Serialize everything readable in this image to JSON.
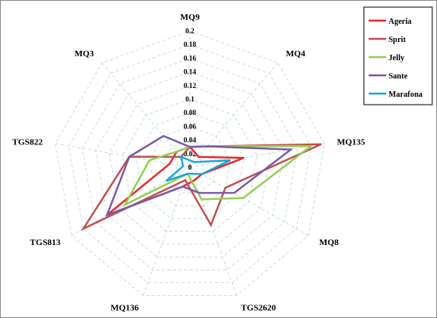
{
  "chart_data": {
    "type": "radar",
    "axes": [
      "MQ9",
      "MQ4",
      "MQ135",
      "MQ8",
      "TGS2620",
      "MQ136",
      "TGS813",
      "TGS822",
      "MQ3"
    ],
    "rlim": [
      0,
      0.2
    ],
    "ticks": [
      "0",
      "0.02",
      "0.04",
      "0.06",
      "0.08",
      "0.1",
      "0.12",
      "0.14",
      "0.16",
      "0.18",
      "0.2"
    ],
    "tick_values": [
      0,
      0.02,
      0.04,
      0.06,
      0.08,
      0.1,
      0.12,
      0.14,
      0.16,
      0.18,
      0.2
    ],
    "grid": true,
    "legend_position": "top-right",
    "series": [
      {
        "name": "Ageria",
        "color": "#e8262a",
        "values": [
          0.03,
          0.02,
          0.08,
          0.02,
          0.02,
          0.03,
          0.14,
          0.03,
          0.03
        ]
      },
      {
        "name": "Sprit",
        "color": "#c0504d",
        "values": [
          0.03,
          0.04,
          0.195,
          0.06,
          0.09,
          0.02,
          0.18,
          0.09,
          0.02
        ]
      },
      {
        "name": "Jelly",
        "color": "#92d050",
        "values": [
          0.03,
          0.04,
          0.18,
          0.09,
          0.05,
          0.01,
          0.11,
          0.06,
          0.03
        ]
      },
      {
        "name": "Sante",
        "color": "#7b5aa6",
        "values": [
          0.03,
          0.04,
          0.15,
          0.075,
          0.04,
          0.03,
          0.14,
          0.09,
          0.06
        ]
      },
      {
        "name": "Marafona",
        "color": "#1aa8d8",
        "values": [
          0.01,
          0.01,
          0.06,
          0.02,
          0.01,
          0.01,
          0.04,
          0.01,
          0.02
        ]
      }
    ]
  }
}
